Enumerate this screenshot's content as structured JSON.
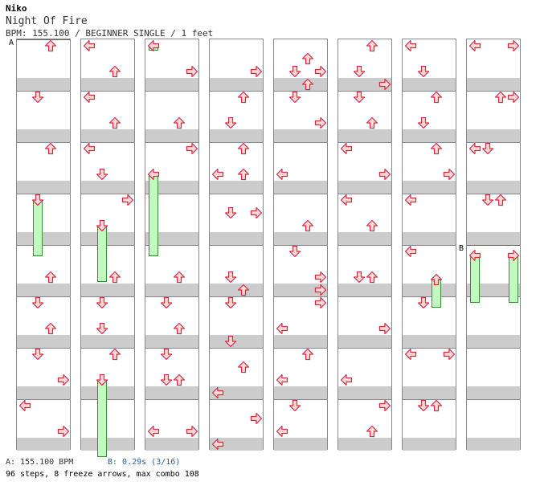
{
  "header": {
    "artist": "Niko",
    "title": "Night Of Fire",
    "info": "BPM: 155.100 / BEGINNER SINGLE / 1 feet"
  },
  "markers": {
    "a_label": "A",
    "b_label": "B"
  },
  "footer": {
    "bpm_a": "A: 155.100 BPM",
    "bpm_b": "B: 0.29s (3/16)",
    "stats": "96 steps, 8 freeze arrows, max combo 108"
  },
  "colors": {
    "arrow_fill": "#ffd6dc",
    "arrow_stroke": "#d42e3c",
    "freeze_fill": "#c6f5c6",
    "freeze_stroke": "#3a8f3a",
    "stripe": "#cccccc",
    "marker": "#3b6fc7"
  },
  "chart": {
    "columns": 8,
    "beats_per_column": 16,
    "rows_per_beat": 2,
    "notes": [
      {
        "c": 0,
        "r": 0,
        "d": "up"
      },
      {
        "c": 0,
        "r": 4,
        "d": "down"
      },
      {
        "c": 0,
        "r": 8,
        "d": "up"
      },
      {
        "c": 0,
        "r": 18,
        "d": "up"
      },
      {
        "c": 0,
        "r": 20,
        "d": "down"
      },
      {
        "c": 0,
        "r": 22,
        "d": "up"
      },
      {
        "c": 0,
        "r": 24,
        "d": "down"
      },
      {
        "c": 0,
        "r": 26,
        "d": "right"
      },
      {
        "c": 0,
        "r": 28,
        "d": "left"
      },
      {
        "c": 0,
        "r": 30,
        "d": "right"
      },
      {
        "c": 1,
        "r": 0,
        "d": "left"
      },
      {
        "c": 1,
        "r": 2,
        "d": "up"
      },
      {
        "c": 1,
        "r": 4,
        "d": "left"
      },
      {
        "c": 1,
        "r": 6,
        "d": "up"
      },
      {
        "c": 1,
        "r": 8,
        "d": "left"
      },
      {
        "c": 1,
        "r": 10,
        "d": "down"
      },
      {
        "c": 1,
        "r": 12,
        "d": "right"
      },
      {
        "c": 1,
        "r": 18,
        "d": "up"
      },
      {
        "c": 1,
        "r": 20,
        "d": "down"
      },
      {
        "c": 1,
        "r": 22,
        "d": "down"
      },
      {
        "c": 1,
        "r": 24,
        "d": "up"
      },
      {
        "c": 2,
        "r": 2,
        "d": "right"
      },
      {
        "c": 2,
        "r": 6,
        "d": "up"
      },
      {
        "c": 2,
        "r": 8,
        "d": "right"
      },
      {
        "c": 2,
        "r": 18,
        "d": "up"
      },
      {
        "c": 2,
        "r": 20,
        "d": "down"
      },
      {
        "c": 2,
        "r": 22,
        "d": "up"
      },
      {
        "c": 2,
        "r": 24,
        "d": "down"
      },
      {
        "c": 2,
        "r": 26,
        "d": "down"
      },
      {
        "c": 2,
        "r": 26,
        "d": "up"
      },
      {
        "c": 2,
        "r": 30,
        "d": "left"
      },
      {
        "c": 2,
        "r": 30,
        "d": "right"
      },
      {
        "c": 3,
        "r": 2,
        "d": "right"
      },
      {
        "c": 3,
        "r": 4,
        "d": "up"
      },
      {
        "c": 3,
        "r": 6,
        "d": "down"
      },
      {
        "c": 3,
        "r": 8,
        "d": "up"
      },
      {
        "c": 3,
        "r": 10,
        "d": "left"
      },
      {
        "c": 3,
        "r": 10,
        "d": "up"
      },
      {
        "c": 3,
        "r": 13,
        "d": "down"
      },
      {
        "c": 3,
        "r": 13,
        "d": "right"
      },
      {
        "c": 3,
        "r": 18,
        "d": "down"
      },
      {
        "c": 3,
        "r": 19,
        "d": "up"
      },
      {
        "c": 3,
        "r": 20,
        "d": "down"
      },
      {
        "c": 3,
        "r": 23,
        "d": "down"
      },
      {
        "c": 3,
        "r": 25,
        "d": "up"
      },
      {
        "c": 3,
        "r": 27,
        "d": "left"
      },
      {
        "c": 3,
        "r": 29,
        "d": "right"
      },
      {
        "c": 3,
        "r": 31,
        "d": "left"
      },
      {
        "c": 4,
        "r": 1,
        "d": "up"
      },
      {
        "c": 4,
        "r": 2,
        "d": "down"
      },
      {
        "c": 4,
        "r": 2,
        "d": "right"
      },
      {
        "c": 4,
        "r": 3,
        "d": "up"
      },
      {
        "c": 4,
        "r": 4,
        "d": "down"
      },
      {
        "c": 4,
        "r": 6,
        "d": "right"
      },
      {
        "c": 4,
        "r": 10,
        "d": "left"
      },
      {
        "c": 4,
        "r": 14,
        "d": "up"
      },
      {
        "c": 4,
        "r": 16,
        "d": "down"
      },
      {
        "c": 4,
        "r": 18,
        "d": "right"
      },
      {
        "c": 4,
        "r": 19,
        "d": "right"
      },
      {
        "c": 4,
        "r": 20,
        "d": "right"
      },
      {
        "c": 4,
        "r": 22,
        "d": "left"
      },
      {
        "c": 4,
        "r": 24,
        "d": "up"
      },
      {
        "c": 4,
        "r": 26,
        "d": "left"
      },
      {
        "c": 4,
        "r": 28,
        "d": "down"
      },
      {
        "c": 4,
        "r": 30,
        "d": "left"
      },
      {
        "c": 5,
        "r": 0,
        "d": "up"
      },
      {
        "c": 5,
        "r": 2,
        "d": "down"
      },
      {
        "c": 5,
        "r": 3,
        "d": "right"
      },
      {
        "c": 5,
        "r": 4,
        "d": "down"
      },
      {
        "c": 5,
        "r": 6,
        "d": "up"
      },
      {
        "c": 5,
        "r": 8,
        "d": "left"
      },
      {
        "c": 5,
        "r": 10,
        "d": "right"
      },
      {
        "c": 5,
        "r": 12,
        "d": "left"
      },
      {
        "c": 5,
        "r": 14,
        "d": "up"
      },
      {
        "c": 5,
        "r": 18,
        "d": "down"
      },
      {
        "c": 5,
        "r": 18,
        "d": "up"
      },
      {
        "c": 5,
        "r": 22,
        "d": "right"
      },
      {
        "c": 5,
        "r": 26,
        "d": "left"
      },
      {
        "c": 5,
        "r": 28,
        "d": "right"
      },
      {
        "c": 5,
        "r": 30,
        "d": "up"
      },
      {
        "c": 6,
        "r": 0,
        "d": "left"
      },
      {
        "c": 6,
        "r": 2,
        "d": "down"
      },
      {
        "c": 6,
        "r": 4,
        "d": "up"
      },
      {
        "c": 6,
        "r": 6,
        "d": "down"
      },
      {
        "c": 6,
        "r": 8,
        "d": "up"
      },
      {
        "c": 6,
        "r": 10,
        "d": "right"
      },
      {
        "c": 6,
        "r": 12,
        "d": "left"
      },
      {
        "c": 6,
        "r": 16,
        "d": "left"
      },
      {
        "c": 6,
        "r": 20,
        "d": "down"
      },
      {
        "c": 6,
        "r": 24,
        "d": "left"
      },
      {
        "c": 6,
        "r": 24,
        "d": "right"
      },
      {
        "c": 6,
        "r": 28,
        "d": "down"
      },
      {
        "c": 6,
        "r": 28,
        "d": "up"
      },
      {
        "c": 7,
        "r": 0,
        "d": "left"
      },
      {
        "c": 7,
        "r": 0,
        "d": "right"
      },
      {
        "c": 7,
        "r": 4,
        "d": "up"
      },
      {
        "c": 7,
        "r": 4,
        "d": "right"
      },
      {
        "c": 7,
        "r": 8,
        "d": "left"
      },
      {
        "c": 7,
        "r": 8,
        "d": "down"
      },
      {
        "c": 7,
        "r": 12,
        "d": "down"
      },
      {
        "c": 7,
        "r": 12,
        "d": "up"
      }
    ],
    "freezes": [
      {
        "c": 0,
        "d": "down",
        "r0": 12,
        "r1": 16.9
      },
      {
        "c": 1,
        "d": "down",
        "r0": 14,
        "r1": 18.9
      },
      {
        "c": 1,
        "d": "down",
        "r0": 26,
        "r1": 32.5
      },
      {
        "c": 2,
        "d": "left",
        "r0": 10,
        "r1": 16.9
      },
      {
        "c": 2,
        "d": "left",
        "r0": 0,
        "r1": 0.5
      },
      {
        "c": 6,
        "d": "up",
        "r0": 18.2,
        "r1": 20.9
      },
      {
        "c": 7,
        "d": "left",
        "r0": 16.3,
        "r1": 20.5
      },
      {
        "c": 7,
        "d": "right",
        "r0": 16.3,
        "r1": 20.5
      }
    ]
  }
}
